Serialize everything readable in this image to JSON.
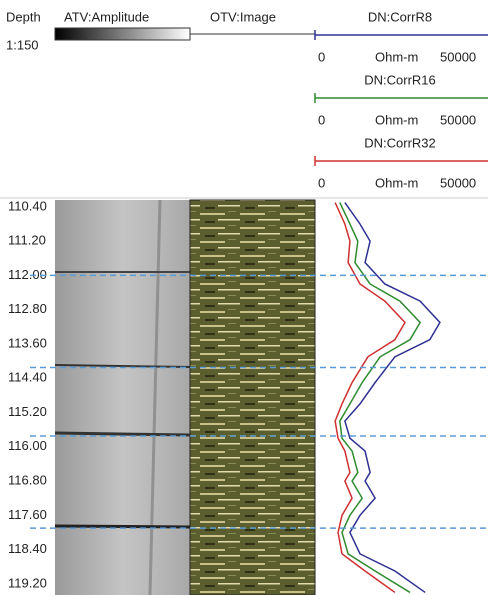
{
  "chart_data": {
    "type": "line",
    "ylabel": "Depth",
    "scale": "1:150",
    "tracks": [
      "ATV:Amplitude",
      "OTV:Image"
    ],
    "xlabel": "Ohm-m",
    "xlim": [
      0,
      50000
    ],
    "ylim": [
      110.24,
      119.46
    ],
    "yticks": [
      {
        "value": 110.4,
        "label": "110.40"
      },
      {
        "value": 111.2,
        "label": "111.20"
      },
      {
        "value": 112.0,
        "label": "112.00"
      },
      {
        "value": 112.8,
        "label": "112.80"
      },
      {
        "value": 113.6,
        "label": "113.60"
      },
      {
        "value": 114.4,
        "label": "114.40"
      },
      {
        "value": 115.2,
        "label": "115.20"
      },
      {
        "value": 116.0,
        "label": "116.00"
      },
      {
        "value": 116.8,
        "label": "116.80"
      },
      {
        "value": 117.6,
        "label": "117.60"
      },
      {
        "value": 118.4,
        "label": "118.40"
      },
      {
        "value": 119.2,
        "label": "119.20"
      }
    ],
    "markers": [
      112.0,
      114.15,
      115.75,
      117.9
    ],
    "depth": [
      110.3,
      110.8,
      111.2,
      111.7,
      112.2,
      112.6,
      113.1,
      113.5,
      113.9,
      114.5,
      115.0,
      115.4,
      115.8,
      116.1,
      116.6,
      116.8,
      117.2,
      117.6,
      118.0,
      118.5,
      118.9,
      119.4
    ],
    "series": [
      {
        "name": "DN:CorrR8",
        "color": "#2e3192",
        "values": [
          8300,
          12500,
          15300,
          13900,
          19400,
          29200,
          34700,
          31900,
          22200,
          16700,
          12500,
          8300,
          9700,
          13900,
          15300,
          13900,
          16700,
          12500,
          9700,
          12500,
          22200,
          30600
        ]
      },
      {
        "name": "DN:CorrR16",
        "color": "#2e8b2e",
        "values": [
          6900,
          9700,
          11900,
          11100,
          15300,
          23600,
          29200,
          26400,
          18100,
          13100,
          9700,
          6900,
          7500,
          10300,
          11900,
          10300,
          13100,
          9700,
          7500,
          9200,
          16700,
          26400
        ]
      },
      {
        "name": "DN:CorrR32",
        "color": "#d03030",
        "values": [
          5600,
          8300,
          9700,
          9200,
          12500,
          19400,
          25000,
          22200,
          14700,
          10300,
          7500,
          5600,
          6400,
          8300,
          9700,
          8300,
          10300,
          7500,
          6400,
          7500,
          13900,
          22200
        ]
      }
    ]
  }
}
